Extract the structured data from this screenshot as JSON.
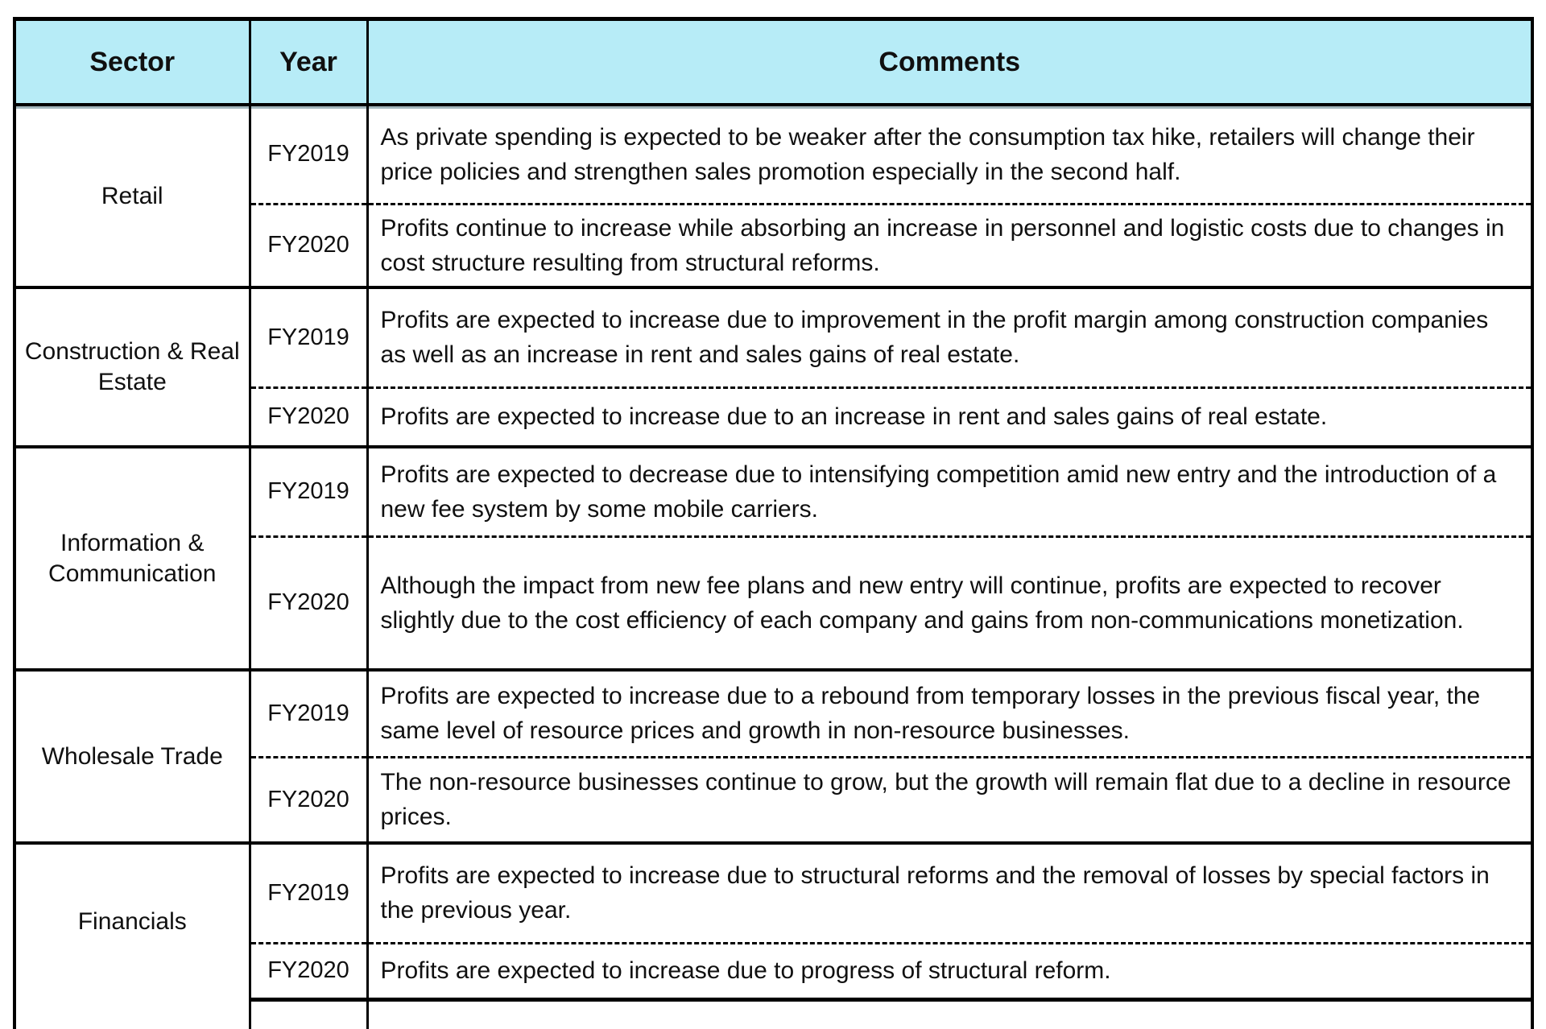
{
  "table": {
    "columns": {
      "sector": "Sector",
      "year": "Year",
      "comments": "Comments"
    },
    "colors": {
      "header_bg": "#b7ecf7",
      "border": "#000000",
      "text": "#101010"
    },
    "sections": [
      {
        "sector": "Retail",
        "rows": [
          {
            "year": "FY2019",
            "comment": "As private spending is expected to be weaker after the consumption tax hike, retailers will change their price policies and strengthen sales promotion especially in the second half."
          },
          {
            "year": "FY2020",
            "comment": "Profits continue to increase while absorbing an increase in personnel and logistic costs due to changes in cost structure resulting from structural reforms."
          }
        ]
      },
      {
        "sector": "Construction & Real Estate",
        "rows": [
          {
            "year": "FY2019",
            "comment": "Profits are expected to increase due to improvement in the profit margin among construction companies as well as an increase in rent and sales gains of real estate."
          },
          {
            "year": "FY2020",
            "comment": "Profits are expected to increase due to an increase in rent and sales gains of real estate."
          }
        ]
      },
      {
        "sector": "Information & Communication",
        "rows": [
          {
            "year": "FY2019",
            "comment": "Profits are expected to decrease due to intensifying competition amid new entry and the introduction of a new fee system by some mobile carriers."
          },
          {
            "year": "FY2020",
            "comment": "Although the impact from new fee plans and new entry will continue, profits are expected to recover slightly due to the cost efficiency of each company and gains from non-communications monetization."
          }
        ]
      },
      {
        "sector": "Wholesale Trade",
        "rows": [
          {
            "year": "FY2019",
            "comment": "Profits are expected to increase due to a rebound from temporary losses in the previous fiscal year, the same level of resource prices and growth in non-resource businesses."
          },
          {
            "year": "FY2020",
            "comment": "The non-resource businesses continue to grow, but the growth will remain flat due to a decline in resource prices."
          }
        ]
      },
      {
        "sector": "Financials",
        "rows": [
          {
            "year": "FY2019",
            "comment": "Profits are expected to increase due to structural reforms and the removal of losses by special factors in the previous year."
          },
          {
            "year": "FY2020",
            "comment": "Profits are expected to increase due to progress of structural reform."
          }
        ]
      }
    ]
  }
}
